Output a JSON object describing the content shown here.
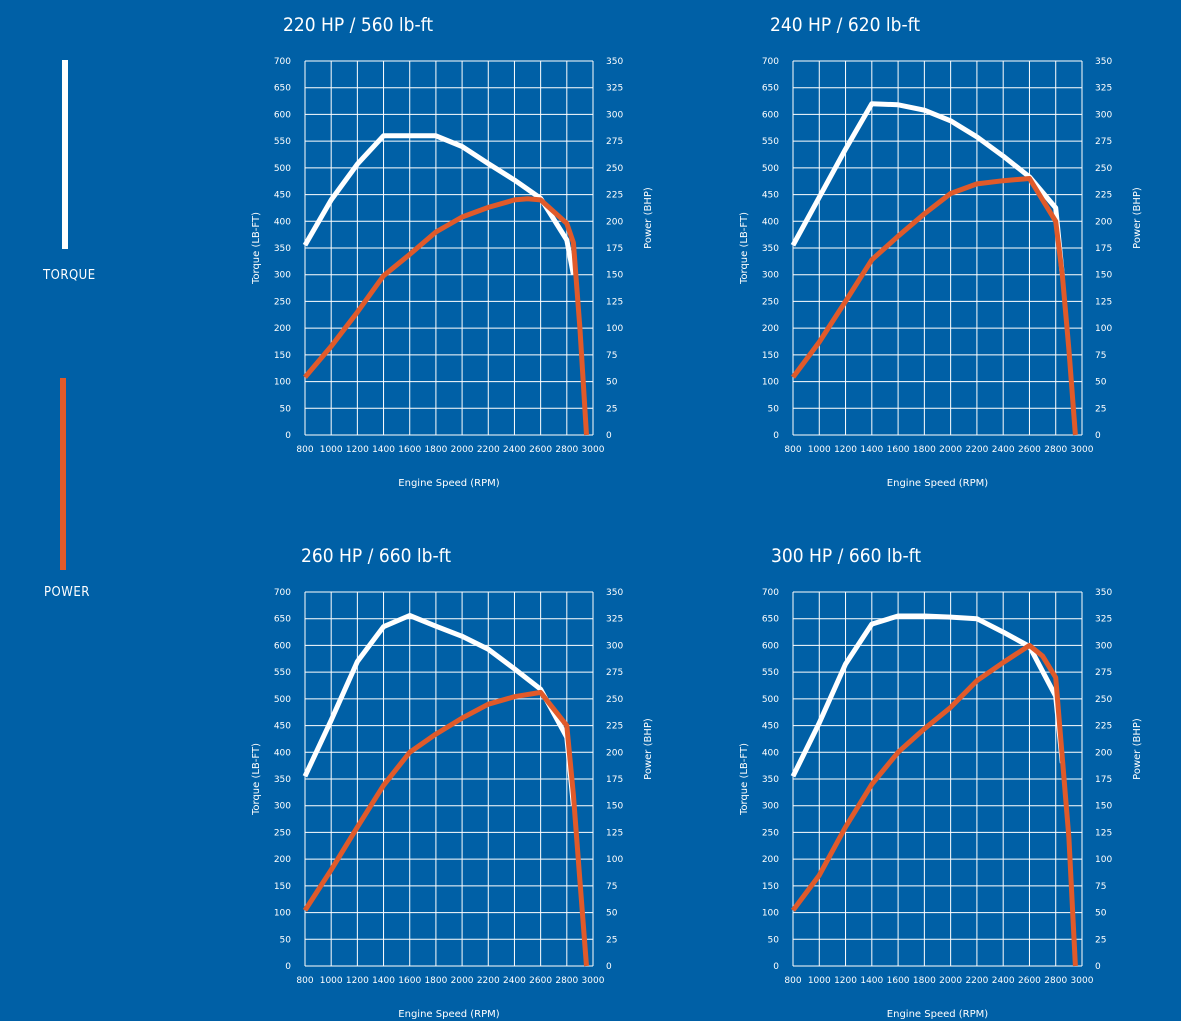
{
  "legend": {
    "torque_label": "TORQUE",
    "power_label": "POWER",
    "torque_color": "#ffffff",
    "power_color": "#e05a2a"
  },
  "chart_data": [
    {
      "type": "line",
      "title": "220 HP / 560 lb-ft",
      "xlabel": "Engine Speed (RPM)",
      "ylabel": "Torque (LB-FT)",
      "ylabel_right": "Power (BHP)",
      "xlim": [
        800,
        3000
      ],
      "ylim": [
        0,
        700
      ],
      "ylim_right": [
        0,
        350
      ],
      "x_ticks": [
        "800",
        "1000",
        "1200",
        "1400",
        "1600",
        "1800",
        "2000",
        "2200",
        "2400",
        "2600",
        "2800",
        "3000"
      ],
      "y_ticks": [
        "0",
        "50",
        "100",
        "150",
        "200",
        "250",
        "300",
        "350",
        "400",
        "450",
        "500",
        "550",
        "600",
        "650",
        "700"
      ],
      "y_ticks_right": [
        "0",
        "25",
        "50",
        "75",
        "100",
        "125",
        "150",
        "175",
        "200",
        "225",
        "250",
        "275",
        "300",
        "325",
        "350"
      ],
      "grid": true,
      "series": [
        {
          "name": "TORQUE",
          "axis": "left",
          "color": "#ffffff",
          "x": [
            800,
            1000,
            1200,
            1400,
            1600,
            1800,
            2000,
            2200,
            2400,
            2600,
            2800,
            2850
          ],
          "y": [
            355,
            440,
            507,
            560,
            560,
            560,
            540,
            508,
            477,
            443,
            365,
            300
          ]
        },
        {
          "name": "POWER",
          "axis": "right",
          "color": "#e05a2a",
          "x": [
            800,
            1000,
            1200,
            1400,
            1600,
            1800,
            2000,
            2200,
            2400,
            2500,
            2600,
            2800,
            2850,
            2900,
            2950
          ],
          "y": [
            54,
            83,
            115,
            149,
            169,
            190,
            204,
            213,
            220,
            221,
            220,
            198,
            180,
            100,
            0
          ]
        }
      ]
    },
    {
      "type": "line",
      "title": "240 HP / 620 lb-ft",
      "xlabel": "Engine Speed (RPM)",
      "ylabel": "Torque (LB-FT)",
      "ylabel_right": "Power (BHP)",
      "xlim": [
        800,
        3000
      ],
      "ylim": [
        0,
        700
      ],
      "ylim_right": [
        0,
        350
      ],
      "x_ticks": [
        "800",
        "1000",
        "1200",
        "1400",
        "1600",
        "1800",
        "2000",
        "2200",
        "2400",
        "2600",
        "2800",
        "3000"
      ],
      "y_ticks": [
        "0",
        "50",
        "100",
        "150",
        "200",
        "250",
        "300",
        "350",
        "400",
        "450",
        "500",
        "550",
        "600",
        "650",
        "700"
      ],
      "y_ticks_right": [
        "0",
        "25",
        "50",
        "75",
        "100",
        "125",
        "150",
        "175",
        "200",
        "225",
        "250",
        "275",
        "300",
        "325",
        "350"
      ],
      "grid": true,
      "series": [
        {
          "name": "TORQUE",
          "axis": "left",
          "color": "#ffffff",
          "x": [
            800,
            1000,
            1200,
            1400,
            1600,
            1800,
            2000,
            2200,
            2400,
            2600,
            2800,
            2850
          ],
          "y": [
            355,
            445,
            535,
            620,
            618,
            608,
            588,
            558,
            522,
            483,
            425,
            300
          ]
        },
        {
          "name": "POWER",
          "axis": "right",
          "color": "#e05a2a",
          "x": [
            800,
            1000,
            1200,
            1400,
            1600,
            1800,
            2000,
            2200,
            2400,
            2600,
            2800,
            2850,
            2900,
            2950
          ],
          "y": [
            54,
            87,
            125,
            164,
            186,
            207,
            226,
            235,
            238,
            240,
            200,
            150,
            80,
            0
          ]
        }
      ]
    },
    {
      "type": "line",
      "title": "260 HP / 660 lb-ft",
      "xlabel": "Engine Speed (RPM)",
      "ylabel": "Torque (LB-FT)",
      "ylabel_right": "Power (BHP)",
      "xlim": [
        800,
        3000
      ],
      "ylim": [
        0,
        700
      ],
      "ylim_right": [
        0,
        350
      ],
      "x_ticks": [
        "800",
        "1000",
        "1200",
        "1400",
        "1600",
        "1800",
        "2000",
        "2200",
        "2400",
        "2600",
        "2800",
        "3000"
      ],
      "y_ticks": [
        "0",
        "50",
        "100",
        "150",
        "200",
        "250",
        "300",
        "350",
        "400",
        "450",
        "500",
        "550",
        "600",
        "650",
        "700"
      ],
      "y_ticks_right": [
        "0",
        "25",
        "50",
        "75",
        "100",
        "125",
        "150",
        "175",
        "200",
        "225",
        "250",
        "275",
        "300",
        "325",
        "350"
      ],
      "grid": true,
      "series": [
        {
          "name": "TORQUE",
          "axis": "left",
          "color": "#ffffff",
          "x": [
            800,
            1000,
            1200,
            1400,
            1600,
            1800,
            2000,
            2200,
            2400,
            2600,
            2800,
            2850
          ],
          "y": [
            355,
            460,
            570,
            635,
            656,
            636,
            617,
            593,
            556,
            518,
            428,
            300
          ]
        },
        {
          "name": "POWER",
          "axis": "right",
          "color": "#e05a2a",
          "x": [
            800,
            1000,
            1200,
            1400,
            1600,
            1800,
            2000,
            2200,
            2400,
            2600,
            2800,
            2850,
            2900,
            2950
          ],
          "y": [
            52,
            90,
            130,
            169,
            200,
            217,
            232,
            245,
            252,
            256,
            225,
            160,
            80,
            0
          ]
        }
      ]
    },
    {
      "type": "line",
      "title": "300 HP / 660 lb-ft",
      "xlabel": "Engine Speed (RPM)",
      "ylabel": "Torque (LB-FT)",
      "ylabel_right": "Power (BHP)",
      "xlim": [
        800,
        3000
      ],
      "ylim": [
        0,
        700
      ],
      "ylim_right": [
        0,
        350
      ],
      "x_ticks": [
        "800",
        "1000",
        "1200",
        "1400",
        "1600",
        "1800",
        "2000",
        "2200",
        "2400",
        "2600",
        "2800",
        "3000"
      ],
      "y_ticks": [
        "0",
        "50",
        "100",
        "150",
        "200",
        "250",
        "300",
        "350",
        "400",
        "450",
        "500",
        "550",
        "600",
        "650",
        "700"
      ],
      "y_ticks_right": [
        "0",
        "25",
        "50",
        "75",
        "100",
        "125",
        "150",
        "175",
        "200",
        "225",
        "250",
        "275",
        "300",
        "325",
        "350"
      ],
      "grid": true,
      "series": [
        {
          "name": "TORQUE",
          "axis": "left",
          "color": "#ffffff",
          "x": [
            800,
            1000,
            1200,
            1400,
            1600,
            1800,
            2000,
            2200,
            2400,
            2600,
            2800,
            2850
          ],
          "y": [
            355,
            455,
            565,
            640,
            655,
            655,
            653,
            650,
            625,
            598,
            505,
            380
          ]
        },
        {
          "name": "POWER",
          "axis": "right",
          "color": "#e05a2a",
          "x": [
            800,
            1000,
            1200,
            1400,
            1600,
            1800,
            2000,
            2200,
            2400,
            2600,
            2700,
            2800,
            2900,
            2950
          ],
          "y": [
            52,
            85,
            130,
            170,
            200,
            222,
            242,
            267,
            284,
            300,
            290,
            270,
            120,
            0
          ]
        }
      ]
    }
  ]
}
